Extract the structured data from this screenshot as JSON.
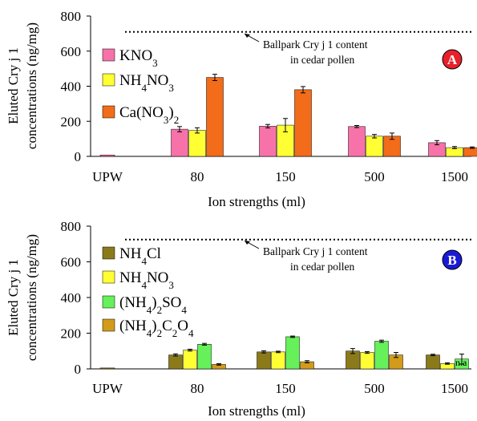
{
  "chart_data": [
    {
      "panel": "A",
      "type": "bar",
      "categories": [
        "UPW",
        "80",
        "150",
        "500",
        "1500"
      ],
      "xlabel": "Ion strengths (ml)",
      "ylabel_line1": "Eluted Cry j 1",
      "ylabel_line2": "concentrations (ng/mg)",
      "ylim": [
        0,
        800
      ],
      "yticks": [
        "0",
        "200",
        "400",
        "600",
        "800"
      ],
      "reference_value": 710,
      "annotation_line1": "Ballpark Cry j 1 content",
      "annotation_line2": "in cedar pollen",
      "badge": "A",
      "badge_color": "#e8202a",
      "upw_value": 8,
      "series": [
        {
          "name_base": "KNO",
          "sub": "3",
          "tail": "",
          "color": "#f772a9",
          "values": [
            null,
            155,
            172,
            170,
            78
          ],
          "errors": [
            null,
            15,
            10,
            6,
            12
          ]
        },
        {
          "name_base": "NH",
          "sub": "4",
          "tail": "NO",
          "sub2": "3",
          "color": "#ffff33",
          "values": [
            null,
            148,
            178,
            115,
            50
          ],
          "errors": [
            null,
            15,
            38,
            10,
            6
          ]
        },
        {
          "name_base": "Ca(NO",
          "sub": "3",
          "tail": ")",
          "sub2": "2",
          "color": "#f26c1a",
          "values": [
            null,
            450,
            380,
            115,
            50
          ],
          "errors": [
            null,
            18,
            18,
            18,
            4
          ]
        }
      ]
    },
    {
      "panel": "B",
      "type": "bar",
      "categories": [
        "UPW",
        "80",
        "150",
        "500",
        "1500"
      ],
      "xlabel": "Ion strengths (ml)",
      "ylabel_line1": "Eluted Cry j 1",
      "ylabel_line2": "concentrations (ng/mg)",
      "ylim": [
        0,
        800
      ],
      "yticks": [
        "0",
        "200",
        "400",
        "600",
        "800"
      ],
      "reference_value": 725,
      "annotation_line1": "Ballpark Cry j 1 content",
      "annotation_line2": "in cedar pollen",
      "badge": "B",
      "badge_color": "#1a1ad6",
      "upw_value": 5,
      "na_label": "n.a",
      "series": [
        {
          "name_base": "NH",
          "sub": "4",
          "tail": "Cl",
          "color": "#8b7a1a",
          "values": [
            null,
            78,
            95,
            100,
            78
          ],
          "errors": [
            null,
            6,
            6,
            14,
            4
          ]
        },
        {
          "name_base": "NH",
          "sub": "4",
          "tail": "NO",
          "sub2": "3",
          "color": "#ffff33",
          "values": [
            null,
            105,
            95,
            92,
            30
          ],
          "errors": [
            null,
            5,
            4,
            5,
            4
          ]
        },
        {
          "name_base": "(NH",
          "sub": "4",
          "tail": ")",
          "sub2": "2",
          "tail2": "SO",
          "sub3": "4",
          "color": "#66f05a",
          "values": [
            null,
            138,
            180,
            155,
            55
          ],
          "errors": [
            null,
            5,
            4,
            6,
            28
          ]
        },
        {
          "name_base": "(NH",
          "sub": "4",
          "tail": ")",
          "sub2": "2",
          "tail2": "C",
          "sub3": "2",
          "tail3": "O",
          "sub4": "4",
          "color": "#d39b1a",
          "values": [
            null,
            25,
            40,
            78,
            null
          ],
          "errors": [
            null,
            4,
            6,
            14,
            null
          ]
        }
      ]
    }
  ]
}
